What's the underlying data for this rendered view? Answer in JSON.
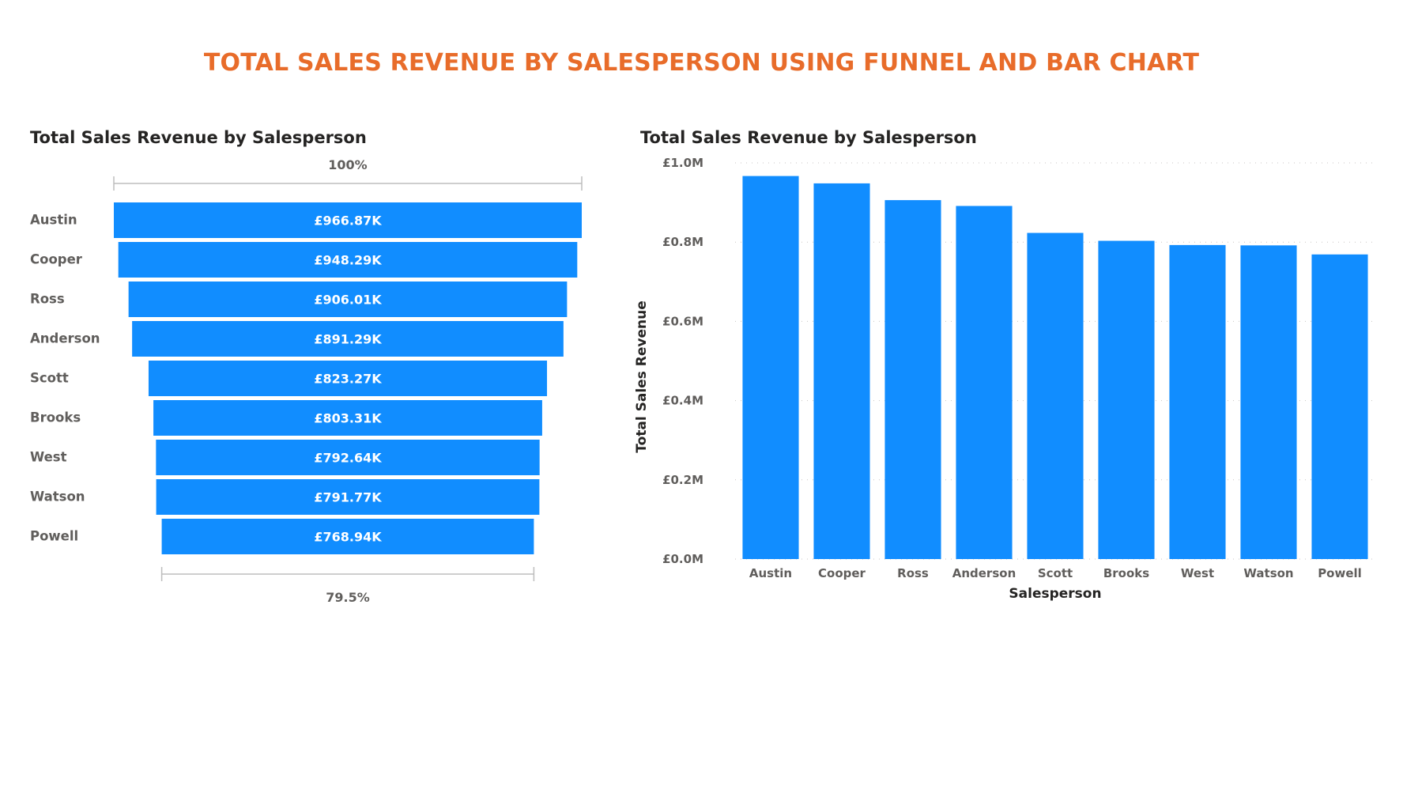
{
  "page": {
    "title": "TOTAL SALES REVENUE BY SALESPERSON USING FUNNEL AND BAR CHART"
  },
  "colors": {
    "title": "#E86C2A",
    "bar": "#118DFF",
    "text": "#605E5C",
    "heading": "#252423"
  },
  "chart_data": [
    {
      "type": "funnel",
      "title": "Total Sales Revenue by Salesperson",
      "categories": [
        "Austin",
        "Cooper",
        "Ross",
        "Anderson",
        "Scott",
        "Brooks",
        "West",
        "Watson",
        "Powell"
      ],
      "values": [
        966.87,
        948.29,
        906.01,
        891.29,
        823.27,
        803.31,
        792.64,
        791.77,
        768.94
      ],
      "data_labels": [
        "£966.87K",
        "£948.29K",
        "£906.01K",
        "£891.29K",
        "£823.27K",
        "£803.31K",
        "£792.64K",
        "£791.77K",
        "£768.94K"
      ],
      "top_percent_label": "100%",
      "bottom_percent_label": "79.5%"
    },
    {
      "type": "bar",
      "title": "Total Sales Revenue by Salesperson",
      "xlabel": "Salesperson",
      "ylabel": "Total Sales Revenue",
      "categories": [
        "Austin",
        "Cooper",
        "Ross",
        "Anderson",
        "Scott",
        "Brooks",
        "West",
        "Watson",
        "Powell"
      ],
      "values": [
        966870,
        948290,
        906010,
        891290,
        823270,
        803310,
        792640,
        791770,
        768940
      ],
      "ylim": [
        0,
        1000000
      ],
      "y_ticks": [
        0,
        200000,
        400000,
        600000,
        800000,
        1000000
      ],
      "y_tick_labels": [
        "£0.0M",
        "£0.2M",
        "£0.4M",
        "£0.6M",
        "£0.8M",
        "£1.0M"
      ],
      "grid": true
    }
  ]
}
